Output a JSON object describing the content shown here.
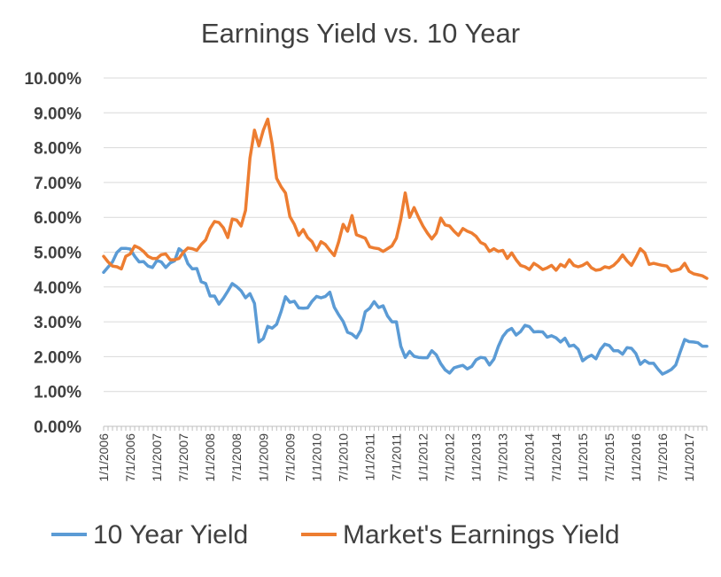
{
  "chart_data": {
    "type": "line",
    "title": "Earnings Yield vs. 10 Year",
    "xlabel": "",
    "ylabel": "",
    "ylim": [
      0,
      0.1
    ],
    "y_ticks": [
      "0.00%",
      "1.00%",
      "2.00%",
      "3.00%",
      "4.00%",
      "5.00%",
      "6.00%",
      "7.00%",
      "8.00%",
      "9.00%",
      "10.00%"
    ],
    "x_tick_labels": [
      "1/1/2006",
      "7/1/2006",
      "1/1/2007",
      "7/1/2007",
      "1/1/2008",
      "7/1/2008",
      "1/1/2009",
      "7/1/2009",
      "1/1/2010",
      "7/1/2010",
      "1/1/2011",
      "7/1/2011",
      "1/1/2012",
      "7/1/2012",
      "1/1/2013",
      "7/1/2013",
      "1/1/2014",
      "7/1/2014",
      "1/1/2015",
      "7/1/2015",
      "1/1/2016",
      "7/1/2016",
      "1/1/2017"
    ],
    "x_range": [
      "2006-01",
      "2017-05"
    ],
    "grid": true,
    "legend_position": "bottom",
    "series": [
      {
        "name": "10 Year Yield",
        "color": "#5b9bd5",
        "points": [
          [
            "2006-01",
            4.42
          ],
          [
            "2006-02",
            4.57
          ],
          [
            "2006-03",
            4.72
          ],
          [
            "2006-04",
            4.99
          ],
          [
            "2006-05",
            5.11
          ],
          [
            "2006-06",
            5.11
          ],
          [
            "2006-07",
            5.09
          ],
          [
            "2006-08",
            4.88
          ],
          [
            "2006-09",
            4.72
          ],
          [
            "2006-10",
            4.73
          ],
          [
            "2006-11",
            4.6
          ],
          [
            "2006-12",
            4.56
          ],
          [
            "2007-01",
            4.76
          ],
          [
            "2007-02",
            4.72
          ],
          [
            "2007-03",
            4.56
          ],
          [
            "2007-04",
            4.69
          ],
          [
            "2007-05",
            4.75
          ],
          [
            "2007-06",
            5.1
          ],
          [
            "2007-07",
            5.0
          ],
          [
            "2007-08",
            4.67
          ],
          [
            "2007-09",
            4.52
          ],
          [
            "2007-10",
            4.53
          ],
          [
            "2007-11",
            4.15
          ],
          [
            "2007-12",
            4.1
          ],
          [
            "2008-01",
            3.74
          ],
          [
            "2008-02",
            3.74
          ],
          [
            "2008-03",
            3.51
          ],
          [
            "2008-04",
            3.68
          ],
          [
            "2008-05",
            3.88
          ],
          [
            "2008-06",
            4.1
          ],
          [
            "2008-07",
            4.01
          ],
          [
            "2008-08",
            3.89
          ],
          [
            "2008-09",
            3.69
          ],
          [
            "2008-10",
            3.81
          ],
          [
            "2008-11",
            3.53
          ],
          [
            "2008-12",
            2.42
          ],
          [
            "2009-01",
            2.52
          ],
          [
            "2009-02",
            2.87
          ],
          [
            "2009-03",
            2.82
          ],
          [
            "2009-04",
            2.93
          ],
          [
            "2009-05",
            3.29
          ],
          [
            "2009-06",
            3.72
          ],
          [
            "2009-07",
            3.56
          ],
          [
            "2009-08",
            3.59
          ],
          [
            "2009-09",
            3.4
          ],
          [
            "2009-10",
            3.39
          ],
          [
            "2009-11",
            3.4
          ],
          [
            "2009-12",
            3.59
          ],
          [
            "2010-01",
            3.73
          ],
          [
            "2010-02",
            3.69
          ],
          [
            "2010-03",
            3.73
          ],
          [
            "2010-04",
            3.85
          ],
          [
            "2010-05",
            3.42
          ],
          [
            "2010-06",
            3.2
          ],
          [
            "2010-07",
            3.01
          ],
          [
            "2010-08",
            2.7
          ],
          [
            "2010-09",
            2.65
          ],
          [
            "2010-10",
            2.54
          ],
          [
            "2010-11",
            2.76
          ],
          [
            "2010-12",
            3.29
          ],
          [
            "2011-01",
            3.39
          ],
          [
            "2011-02",
            3.58
          ],
          [
            "2011-03",
            3.41
          ],
          [
            "2011-04",
            3.46
          ],
          [
            "2011-05",
            3.17
          ],
          [
            "2011-06",
            3.0
          ],
          [
            "2011-07",
            3.0
          ],
          [
            "2011-08",
            2.3
          ],
          [
            "2011-09",
            1.98
          ],
          [
            "2011-10",
            2.15
          ],
          [
            "2011-11",
            2.01
          ],
          [
            "2011-12",
            1.98
          ],
          [
            "2012-01",
            1.97
          ],
          [
            "2012-02",
            1.97
          ],
          [
            "2012-03",
            2.17
          ],
          [
            "2012-04",
            2.05
          ],
          [
            "2012-05",
            1.8
          ],
          [
            "2012-06",
            1.62
          ],
          [
            "2012-07",
            1.53
          ],
          [
            "2012-08",
            1.68
          ],
          [
            "2012-09",
            1.72
          ],
          [
            "2012-10",
            1.75
          ],
          [
            "2012-11",
            1.65
          ],
          [
            "2012-12",
            1.72
          ],
          [
            "2013-01",
            1.91
          ],
          [
            "2013-02",
            1.98
          ],
          [
            "2013-03",
            1.96
          ],
          [
            "2013-04",
            1.76
          ],
          [
            "2013-05",
            1.93
          ],
          [
            "2013-06",
            2.3
          ],
          [
            "2013-07",
            2.58
          ],
          [
            "2013-08",
            2.74
          ],
          [
            "2013-09",
            2.81
          ],
          [
            "2013-10",
            2.62
          ],
          [
            "2013-11",
            2.72
          ],
          [
            "2013-12",
            2.9
          ],
          [
            "2014-01",
            2.86
          ],
          [
            "2014-02",
            2.71
          ],
          [
            "2014-03",
            2.72
          ],
          [
            "2014-04",
            2.71
          ],
          [
            "2014-05",
            2.56
          ],
          [
            "2014-06",
            2.6
          ],
          [
            "2014-07",
            2.54
          ],
          [
            "2014-08",
            2.42
          ],
          [
            "2014-09",
            2.53
          ],
          [
            "2014-10",
            2.3
          ],
          [
            "2014-11",
            2.33
          ],
          [
            "2014-12",
            2.21
          ],
          [
            "2015-01",
            1.88
          ],
          [
            "2015-02",
            1.98
          ],
          [
            "2015-03",
            2.04
          ],
          [
            "2015-04",
            1.94
          ],
          [
            "2015-05",
            2.2
          ],
          [
            "2015-06",
            2.36
          ],
          [
            "2015-07",
            2.32
          ],
          [
            "2015-08",
            2.17
          ],
          [
            "2015-09",
            2.17
          ],
          [
            "2015-10",
            2.07
          ],
          [
            "2015-11",
            2.26
          ],
          [
            "2015-12",
            2.24
          ],
          [
            "2016-01",
            2.09
          ],
          [
            "2016-02",
            1.78
          ],
          [
            "2016-03",
            1.89
          ],
          [
            "2016-04",
            1.81
          ],
          [
            "2016-05",
            1.81
          ],
          [
            "2016-06",
            1.64
          ],
          [
            "2016-07",
            1.5
          ],
          [
            "2016-08",
            1.56
          ],
          [
            "2016-09",
            1.63
          ],
          [
            "2016-10",
            1.76
          ],
          [
            "2016-11",
            2.14
          ],
          [
            "2016-12",
            2.49
          ],
          [
            "2017-01",
            2.43
          ],
          [
            "2017-02",
            2.42
          ],
          [
            "2017-03",
            2.4
          ],
          [
            "2017-04",
            2.3
          ],
          [
            "2017-05",
            2.3
          ]
        ]
      },
      {
        "name": "Market's Earnings Yield",
        "color": "#ed7d31",
        "points": [
          [
            "2006-01",
            4.88
          ],
          [
            "2006-02",
            4.72
          ],
          [
            "2006-03",
            4.6
          ],
          [
            "2006-04",
            4.58
          ],
          [
            "2006-05",
            4.52
          ],
          [
            "2006-06",
            4.88
          ],
          [
            "2006-07",
            4.95
          ],
          [
            "2006-08",
            5.18
          ],
          [
            "2006-09",
            5.12
          ],
          [
            "2006-10",
            5.02
          ],
          [
            "2006-11",
            4.88
          ],
          [
            "2006-12",
            4.82
          ],
          [
            "2007-01",
            4.82
          ],
          [
            "2007-02",
            4.93
          ],
          [
            "2007-03",
            4.95
          ],
          [
            "2007-04",
            4.78
          ],
          [
            "2007-05",
            4.78
          ],
          [
            "2007-06",
            4.82
          ],
          [
            "2007-07",
            5.0
          ],
          [
            "2007-08",
            5.12
          ],
          [
            "2007-09",
            5.1
          ],
          [
            "2007-10",
            5.05
          ],
          [
            "2007-11",
            5.22
          ],
          [
            "2007-12",
            5.35
          ],
          [
            "2008-01",
            5.68
          ],
          [
            "2008-02",
            5.88
          ],
          [
            "2008-03",
            5.85
          ],
          [
            "2008-04",
            5.7
          ],
          [
            "2008-05",
            5.42
          ],
          [
            "2008-06",
            5.95
          ],
          [
            "2008-07",
            5.92
          ],
          [
            "2008-08",
            5.75
          ],
          [
            "2008-09",
            6.2
          ],
          [
            "2008-10",
            7.7
          ],
          [
            "2008-11",
            8.5
          ],
          [
            "2008-12",
            8.05
          ],
          [
            "2009-01",
            8.5
          ],
          [
            "2009-02",
            8.82
          ],
          [
            "2009-03",
            8.1
          ],
          [
            "2009-04",
            7.12
          ],
          [
            "2009-05",
            6.88
          ],
          [
            "2009-06",
            6.7
          ],
          [
            "2009-07",
            6.02
          ],
          [
            "2009-08",
            5.8
          ],
          [
            "2009-09",
            5.48
          ],
          [
            "2009-10",
            5.65
          ],
          [
            "2009-11",
            5.42
          ],
          [
            "2009-12",
            5.3
          ],
          [
            "2010-01",
            5.05
          ],
          [
            "2010-02",
            5.3
          ],
          [
            "2010-03",
            5.22
          ],
          [
            "2010-04",
            5.05
          ],
          [
            "2010-05",
            4.9
          ],
          [
            "2010-06",
            5.3
          ],
          [
            "2010-07",
            5.8
          ],
          [
            "2010-08",
            5.6
          ],
          [
            "2010-09",
            6.05
          ],
          [
            "2010-10",
            5.5
          ],
          [
            "2010-11",
            5.45
          ],
          [
            "2010-12",
            5.4
          ],
          [
            "2011-01",
            5.15
          ],
          [
            "2011-02",
            5.12
          ],
          [
            "2011-03",
            5.1
          ],
          [
            "2011-04",
            5.02
          ],
          [
            "2011-05",
            5.1
          ],
          [
            "2011-06",
            5.18
          ],
          [
            "2011-07",
            5.4
          ],
          [
            "2011-08",
            5.95
          ],
          [
            "2011-09",
            6.7
          ],
          [
            "2011-10",
            6.0
          ],
          [
            "2011-11",
            6.28
          ],
          [
            "2011-12",
            6.0
          ],
          [
            "2012-01",
            5.75
          ],
          [
            "2012-02",
            5.55
          ],
          [
            "2012-03",
            5.38
          ],
          [
            "2012-04",
            5.55
          ],
          [
            "2012-05",
            5.98
          ],
          [
            "2012-06",
            5.78
          ],
          [
            "2012-07",
            5.75
          ],
          [
            "2012-08",
            5.6
          ],
          [
            "2012-09",
            5.48
          ],
          [
            "2012-10",
            5.68
          ],
          [
            "2012-11",
            5.6
          ],
          [
            "2012-12",
            5.55
          ],
          [
            "2013-01",
            5.45
          ],
          [
            "2013-02",
            5.28
          ],
          [
            "2013-03",
            5.22
          ],
          [
            "2013-04",
            5.02
          ],
          [
            "2013-05",
            5.1
          ],
          [
            "2013-06",
            5.02
          ],
          [
            "2013-07",
            5.05
          ],
          [
            "2013-08",
            4.82
          ],
          [
            "2013-09",
            4.98
          ],
          [
            "2013-10",
            4.78
          ],
          [
            "2013-11",
            4.62
          ],
          [
            "2013-12",
            4.58
          ],
          [
            "2014-01",
            4.5
          ],
          [
            "2014-02",
            4.68
          ],
          [
            "2014-03",
            4.6
          ],
          [
            "2014-04",
            4.5
          ],
          [
            "2014-05",
            4.55
          ],
          [
            "2014-06",
            4.62
          ],
          [
            "2014-07",
            4.48
          ],
          [
            "2014-08",
            4.65
          ],
          [
            "2014-09",
            4.58
          ],
          [
            "2014-10",
            4.78
          ],
          [
            "2014-11",
            4.62
          ],
          [
            "2014-12",
            4.58
          ],
          [
            "2015-01",
            4.62
          ],
          [
            "2015-02",
            4.7
          ],
          [
            "2015-03",
            4.55
          ],
          [
            "2015-04",
            4.48
          ],
          [
            "2015-05",
            4.5
          ],
          [
            "2015-06",
            4.58
          ],
          [
            "2015-07",
            4.55
          ],
          [
            "2015-08",
            4.62
          ],
          [
            "2015-09",
            4.75
          ],
          [
            "2015-10",
            4.92
          ],
          [
            "2015-11",
            4.75
          ],
          [
            "2015-12",
            4.62
          ],
          [
            "2016-01",
            4.85
          ],
          [
            "2016-02",
            5.1
          ],
          [
            "2016-03",
            4.98
          ],
          [
            "2016-04",
            4.65
          ],
          [
            "2016-05",
            4.68
          ],
          [
            "2016-06",
            4.65
          ],
          [
            "2016-07",
            4.62
          ],
          [
            "2016-08",
            4.6
          ],
          [
            "2016-09",
            4.45
          ],
          [
            "2016-10",
            4.48
          ],
          [
            "2016-11",
            4.52
          ],
          [
            "2016-12",
            4.68
          ],
          [
            "2017-01",
            4.45
          ],
          [
            "2017-02",
            4.38
          ],
          [
            "2017-03",
            4.35
          ],
          [
            "2017-04",
            4.32
          ],
          [
            "2017-05",
            4.25
          ]
        ]
      }
    ]
  }
}
